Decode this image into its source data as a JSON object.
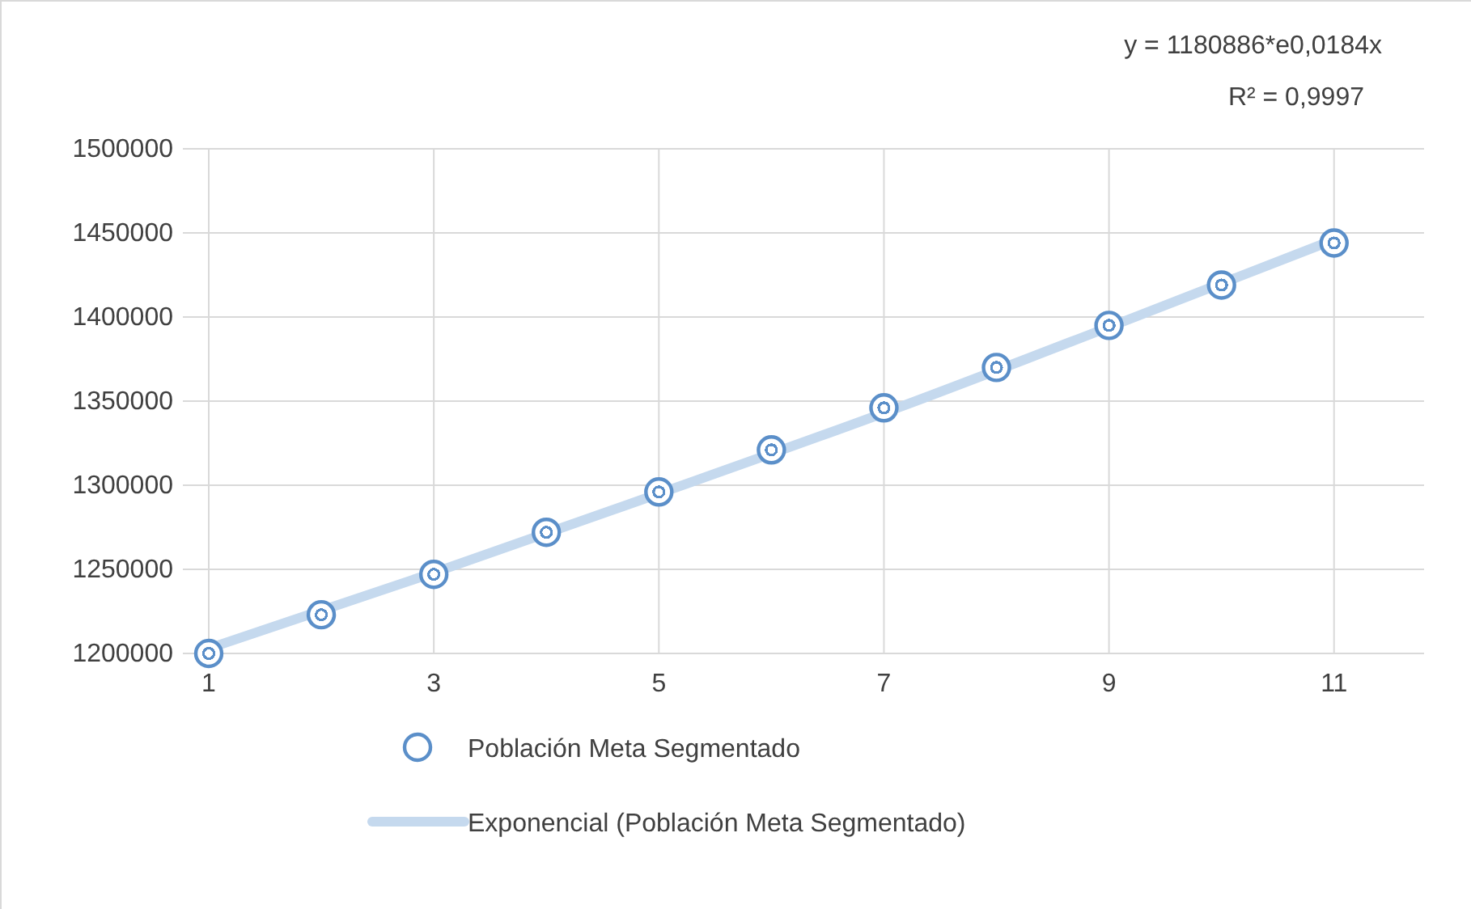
{
  "chart_data": {
    "type": "scatter",
    "annotations": [
      "y = 1180886*e0,0184x",
      "R² = 0,9997"
    ],
    "x": [
      1,
      2,
      3,
      4,
      5,
      6,
      7,
      8,
      9,
      10,
      11
    ],
    "series": [
      {
        "name": "Población Meta Segmentado",
        "color": "#5b8fc9",
        "marker": "circle",
        "values": [
          1200000,
          1223000,
          1247000,
          1272000,
          1296000,
          1321000,
          1346000,
          1370000,
          1395000,
          1419000,
          1444000
        ]
      },
      {
        "name": "Exponencial (Población Meta Segmentado)",
        "type": "line",
        "color": "#c5d9ee",
        "line_style": "solid",
        "x": [
          1,
          3,
          5,
          7,
          9,
          11
        ],
        "values": [
          1203000,
          1248000,
          1295000,
          1343000,
          1394000,
          1446000
        ]
      }
    ],
    "xlim": [
      0.77,
      11.8
    ],
    "xticks": [
      1,
      3,
      5,
      7,
      9,
      11
    ],
    "ylim": [
      1200000,
      1500000
    ],
    "yticks": [
      1200000,
      1250000,
      1300000,
      1350000,
      1400000,
      1450000,
      1500000
    ],
    "grid": true,
    "legend": "bottom"
  }
}
